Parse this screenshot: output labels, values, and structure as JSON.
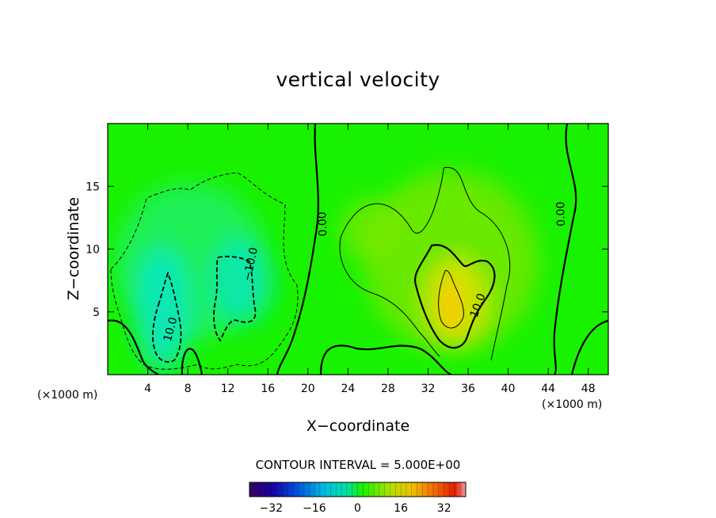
{
  "chart_data": {
    "type": "heatmap",
    "title": "vertical velocity",
    "xlabel": "X−coordinate",
    "ylabel": "Z−coordinate",
    "x_unit_label": "(×1000 m)",
    "xlim": [
      0,
      50
    ],
    "ylim": [
      0,
      20
    ],
    "x_ticks": [
      4,
      8,
      12,
      16,
      20,
      24,
      28,
      32,
      36,
      40,
      44,
      48
    ],
    "y_ticks": [
      5,
      10,
      15
    ],
    "contour_interval_text": "CONTOUR INTERVAL = 5.000E+00",
    "contour_interval": 5.0,
    "colorbar": {
      "range": [
        -40,
        40
      ],
      "ticks": [
        -32,
        -16,
        0,
        16,
        32
      ]
    },
    "contour_labels": [
      {
        "text": "10.0",
        "x": 6.3,
        "y": 3.6,
        "rotate": -75
      },
      {
        "text": "−10.0",
        "x": 14.3,
        "y": 8.8,
        "rotate": -78
      },
      {
        "text": "0.00",
        "x": 21.5,
        "y": 12.0,
        "rotate": -92
      },
      {
        "text": "0.00",
        "x": 45.3,
        "y": 12.8,
        "rotate": -92
      },
      {
        "text": "10.0",
        "x": 37.0,
        "y": 5.5,
        "rotate": -70
      }
    ],
    "field_extrema": [
      {
        "sign": "negative",
        "x": 6.0,
        "y": 5.0,
        "approx_value": -15
      },
      {
        "sign": "negative",
        "x": 12.5,
        "y": 7.0,
        "approx_value": -12
      },
      {
        "sign": "positive",
        "x": 34.0,
        "y": 5.5,
        "approx_value": 15
      },
      {
        "sign": "positive",
        "x": 26.0,
        "y": 10.5,
        "approx_value": 6
      }
    ],
    "colors": {
      "zero_level": "#18f200",
      "positive_peak": "#f0d000",
      "negative_peak": "#10e8c0"
    }
  }
}
